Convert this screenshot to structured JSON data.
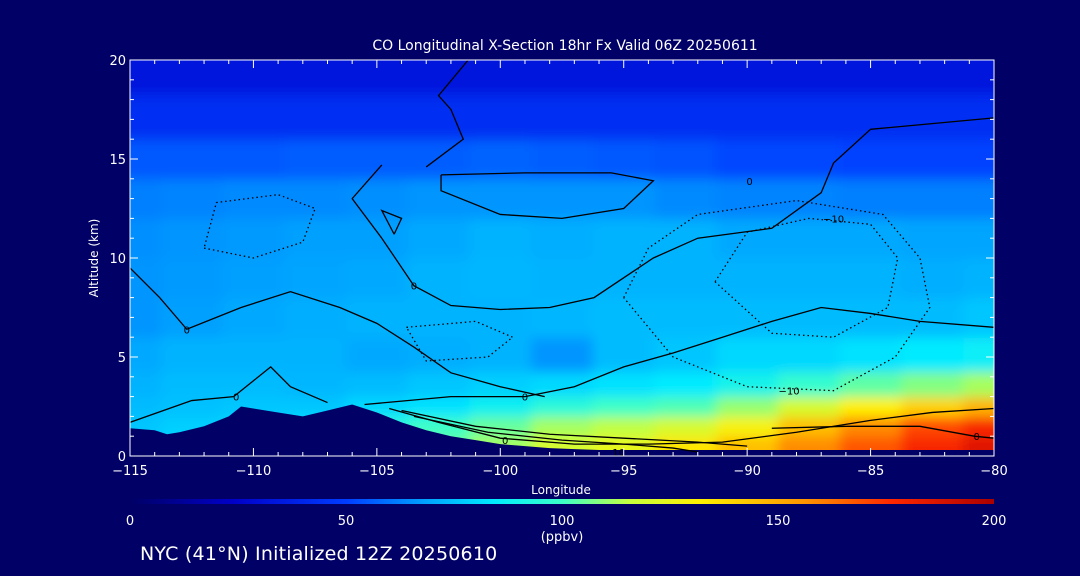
{
  "footer": "NYC (41°N) Initialized 12Z 20250610",
  "colors": {
    "background": "#000066",
    "axes": "#ffffff",
    "contour": "#000000"
  },
  "chart_data": {
    "type": "heatmap",
    "title": "CO Longitudinal X-Section 18hr  Fx Valid 06Z 20250611",
    "xlabel": "Longitude",
    "ylabel": "Altitude (km)",
    "xlim": [
      -115,
      -80
    ],
    "ylim": [
      0,
      20
    ],
    "xticks": [
      -115,
      -110,
      -105,
      -100,
      -95,
      -90,
      -85,
      -80
    ],
    "xtick_labels": [
      "−115",
      "−110",
      "−105",
      "−100",
      "−95",
      "−90",
      "−85",
      "−80"
    ],
    "yticks": [
      0,
      5,
      10,
      15,
      20
    ],
    "ytick_labels": [
      "0",
      "5",
      "10",
      "15",
      "20"
    ],
    "colorbar": {
      "min": 0,
      "max": 200,
      "ticks": [
        0,
        50,
        100,
        150,
        200
      ],
      "tick_labels": [
        "0",
        "50",
        "100",
        "150",
        "200"
      ],
      "unit_label": "(ppbv)",
      "colormap": "rainbow"
    },
    "field": {
      "description_units": "CO mixing ratio (ppbv) on a lon/alt grid",
      "lon": [
        -115,
        -112.5,
        -110,
        -107.5,
        -105,
        -102.5,
        -100,
        -97.5,
        -95,
        -92.5,
        -90,
        -87.5,
        -85,
        -82.5,
        -80
      ],
      "alt": [
        0.5,
        1.5,
        2.5,
        3.5,
        5,
        7,
        9,
        11,
        13,
        15,
        17,
        19.5
      ],
      "values": [
        [
          78,
          80,
          0,
          0,
          0,
          105,
          112,
          120,
          125,
          135,
          145,
          158,
          168,
          178,
          185
        ],
        [
          76,
          78,
          80,
          82,
          95,
          100,
          105,
          112,
          115,
          120,
          130,
          145,
          158,
          170,
          178
        ],
        [
          74,
          75,
          76,
          76,
          80,
          82,
          88,
          95,
          100,
          102,
          110,
          120,
          132,
          140,
          148
        ],
        [
          72,
          74,
          74,
          73,
          74,
          76,
          78,
          80,
          82,
          84,
          90,
          98,
          104,
          108,
          112
        ],
        [
          70,
          72,
          72,
          72,
          70,
          71,
          72,
          66,
          74,
          76,
          80,
          80,
          82,
          84,
          86
        ],
        [
          66,
          68,
          70,
          71,
          72,
          72,
          72,
          73,
          74,
          74,
          74,
          74,
          74,
          74,
          76
        ],
        [
          66,
          67,
          68,
          69,
          70,
          72,
          73,
          72,
          72,
          72,
          72,
          72,
          72,
          71,
          72
        ],
        [
          65,
          66,
          67,
          68,
          68,
          70,
          72,
          71,
          72,
          72,
          70,
          70,
          70,
          69,
          69
        ],
        [
          62,
          63,
          64,
          64,
          65,
          66,
          66,
          66,
          66,
          64,
          63,
          63,
          62,
          62,
          62
        ],
        [
          55,
          55,
          55,
          56,
          56,
          56,
          57,
          56,
          55,
          54,
          52,
          52,
          51,
          51,
          51
        ],
        [
          44,
          44,
          44,
          44,
          44,
          44,
          44,
          44,
          44,
          44,
          44,
          44,
          44,
          44,
          44
        ],
        [
          34,
          34,
          34,
          34,
          34,
          34,
          34,
          34,
          34,
          34,
          34,
          34,
          34,
          34,
          34
        ]
      ]
    },
    "terrain": {
      "description_units": "surface altitude (km) vs longitude",
      "lon": [
        -115,
        -114,
        -113.5,
        -113,
        -112,
        -111,
        -110.5,
        -110,
        -109,
        -108,
        -107,
        -106,
        -105,
        -104,
        -103,
        -102,
        -101,
        -100,
        -99,
        -98,
        -97,
        -96,
        -95,
        -94,
        -92,
        -90,
        -88,
        -86,
        -84,
        -82,
        -80
      ],
      "alt": [
        1.4,
        1.3,
        1.1,
        1.2,
        1.5,
        2.0,
        2.5,
        2.4,
        2.2,
        2.0,
        2.3,
        2.6,
        2.2,
        1.7,
        1.3,
        1.0,
        0.8,
        0.6,
        0.5,
        0.4,
        0.35,
        0.3,
        0.3,
        0.3,
        0.3,
        0.3,
        0.3,
        0.3,
        0.3,
        0.3,
        0.3
      ]
    },
    "contour_labels": [
      "0",
      "0",
      "0",
      "0",
      "0",
      "0",
      "0",
      "0",
      "10",
      "0",
      "−10",
      "−10",
      "0"
    ],
    "contours": [
      {
        "style": "solid",
        "label": "0",
        "label_at": [
          -99,
          3.0
        ],
        "points": [
          [
            -105.5,
            2.6
          ],
          [
            -102,
            3.0
          ],
          [
            -99,
            3.0
          ],
          [
            -97,
            3.5
          ],
          [
            -95,
            4.5
          ],
          [
            -93,
            5.2
          ],
          [
            -91,
            6.0
          ],
          [
            -89,
            6.8
          ],
          [
            -87,
            7.5
          ],
          [
            -85,
            7.2
          ],
          [
            -83,
            6.8
          ],
          [
            -80,
            6.5
          ]
        ]
      },
      {
        "style": "solid",
        "label": "0",
        "label_at": [
          -99.8,
          0.8
        ],
        "points": [
          [
            -104.5,
            2.4
          ],
          [
            -102.5,
            1.7
          ],
          [
            -100,
            0.9
          ],
          [
            -97,
            0.6
          ],
          [
            -94,
            0.6
          ],
          [
            -91,
            0.7
          ],
          [
            -88,
            1.2
          ],
          [
            -85,
            1.8
          ],
          [
            -82.5,
            2.2
          ],
          [
            -80,
            2.4
          ]
        ]
      },
      {
        "style": "solid",
        "label": "",
        "label_at": null,
        "points": [
          [
            -104,
            2.3
          ],
          [
            -101,
            1.5
          ],
          [
            -98,
            1.1
          ],
          [
            -95,
            0.9
          ],
          [
            -92,
            0.7
          ],
          [
            -90,
            0.5
          ]
        ]
      },
      {
        "style": "solid",
        "label": "10",
        "label_at": [
          -95.2,
          0.2
        ],
        "points": [
          [
            -103.5,
            2.0
          ],
          [
            -100.5,
            1.2
          ],
          [
            -97.5,
            0.8
          ],
          [
            -95,
            0.6
          ],
          [
            -93,
            0.4
          ],
          [
            -92,
            0.2
          ]
        ]
      },
      {
        "style": "solid",
        "label": "0",
        "label_at": [
          -80.7,
          1.0
        ],
        "points": [
          [
            -89,
            1.4
          ],
          [
            -86,
            1.5
          ],
          [
            -83,
            1.5
          ],
          [
            -80.8,
            1.0
          ],
          [
            -80,
            0.9
          ]
        ]
      },
      {
        "style": "solid",
        "label": "0",
        "label_at": [
          -110.7,
          3.0
        ],
        "points": [
          [
            -115,
            1.7
          ],
          [
            -112.5,
            2.8
          ],
          [
            -110.8,
            3.0
          ],
          [
            -109.3,
            4.5
          ],
          [
            -108.5,
            3.5
          ],
          [
            -107,
            2.7
          ]
        ]
      },
      {
        "style": "solid",
        "label": "0",
        "label_at": [
          -112.7,
          6.4
        ],
        "points": [
          [
            -115,
            9.5
          ],
          [
            -113.8,
            8.0
          ],
          [
            -112.7,
            6.4
          ],
          [
            -110.5,
            7.5
          ],
          [
            -108.5,
            8.3
          ],
          [
            -106.5,
            7.5
          ],
          [
            -105,
            6.7
          ],
          [
            -103.5,
            5.5
          ],
          [
            -102,
            4.2
          ],
          [
            -100,
            3.5
          ],
          [
            -98.2,
            3.0
          ]
        ]
      },
      {
        "style": "solid",
        "label": "0",
        "label_at": [
          -103.5,
          8.6
        ],
        "points": [
          [
            -104.8,
            14.7
          ],
          [
            -106,
            13.0
          ],
          [
            -104.8,
            11.0
          ],
          [
            -103.5,
            8.6
          ],
          [
            -102,
            7.6
          ],
          [
            -100,
            7.4
          ],
          [
            -98,
            7.5
          ],
          [
            -96.2,
            8.0
          ],
          [
            -93.8,
            10.0
          ],
          [
            -92,
            11.0
          ],
          [
            -89,
            11.5
          ],
          [
            -87,
            13.3
          ],
          [
            -86.5,
            14.8
          ],
          [
            -85,
            16.5
          ],
          [
            -79.8,
            17.1
          ]
        ]
      },
      {
        "style": "solid",
        "label": "0",
        "label_at": [
          -89.9,
          13.9
        ],
        "points": [
          [
            -103,
            14.6
          ],
          [
            -101.5,
            16.0
          ],
          [
            -102,
            17.5
          ],
          [
            -102.5,
            18.2
          ],
          [
            -101.3,
            20.0
          ]
        ]
      },
      {
        "style": "solid",
        "label": "",
        "label_at": null,
        "points": [
          [
            -102.4,
            14.2
          ],
          [
            -99,
            14.3
          ],
          [
            -95.5,
            14.3
          ],
          [
            -93.8,
            13.9
          ],
          [
            -95,
            12.5
          ],
          [
            -97.5,
            12.0
          ],
          [
            -100,
            12.2
          ],
          [
            -102.4,
            13.4
          ],
          [
            -102.4,
            14.2
          ]
        ]
      },
      {
        "style": "solid",
        "label": "",
        "label_at": null,
        "points": [
          [
            -104.3,
            11.2
          ],
          [
            -104.8,
            12.4
          ],
          [
            -104,
            12.0
          ],
          [
            -104.3,
            11.2
          ]
        ]
      },
      {
        "style": "dotted",
        "label": "−10",
        "label_at": [
          -86.5,
          12.0
        ],
        "points": [
          [
            -95,
            8.0
          ],
          [
            -94,
            10.5
          ],
          [
            -92,
            12.2
          ],
          [
            -88,
            12.9
          ],
          [
            -84.5,
            12.2
          ],
          [
            -83,
            10.0
          ],
          [
            -82.6,
            7.5
          ],
          [
            -84,
            5.0
          ],
          [
            -86.5,
            3.3
          ],
          [
            -90,
            3.5
          ],
          [
            -93,
            5.0
          ],
          [
            -95,
            8.0
          ]
        ]
      },
      {
        "style": "dotted",
        "label": "−10",
        "label_at": [
          -88.3,
          3.3
        ],
        "points": [
          [
            -91.3,
            8.8
          ],
          [
            -90,
            11.3
          ],
          [
            -87.5,
            12.0
          ],
          [
            -85,
            11.7
          ],
          [
            -83.9,
            10.0
          ],
          [
            -84.3,
            7.5
          ],
          [
            -86.5,
            6.0
          ],
          [
            -89,
            6.2
          ],
          [
            -91.3,
            8.8
          ]
        ]
      },
      {
        "style": "dotted",
        "label": "",
        "label_at": null,
        "points": [
          [
            -112,
            10.5
          ],
          [
            -110,
            10.0
          ],
          [
            -108,
            10.8
          ],
          [
            -107.5,
            12.5
          ],
          [
            -109,
            13.2
          ],
          [
            -111.5,
            12.8
          ],
          [
            -112,
            10.5
          ]
        ]
      },
      {
        "style": "dotted",
        "label": "",
        "label_at": null,
        "points": [
          [
            -103.8,
            6.5
          ],
          [
            -101,
            6.8
          ],
          [
            -99.5,
            6.0
          ],
          [
            -100.5,
            5.0
          ],
          [
            -103,
            4.8
          ],
          [
            -103.8,
            6.5
          ]
        ]
      }
    ]
  }
}
